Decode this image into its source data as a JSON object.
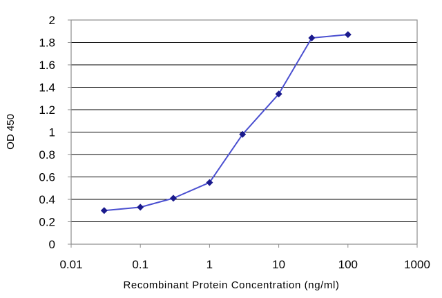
{
  "chart_data": {
    "type": "line",
    "title": "",
    "xlabel": "Recombinant Protein Concentration (ng/ml)",
    "ylabel": "OD 450",
    "xscale": "log",
    "xlim": [
      0.01,
      1000
    ],
    "ylim": [
      0,
      2
    ],
    "grid": "horizontal",
    "legend": "none",
    "x_ticks": [
      "0.01",
      "0.1",
      "1",
      "10",
      "100",
      "1000"
    ],
    "y_ticks": [
      "0",
      "0.2",
      "0.4",
      "0.6",
      "0.8",
      "1",
      "1.2",
      "1.4",
      "1.6",
      "1.8",
      "2"
    ],
    "series": [
      {
        "x": [
          0.03,
          0.1,
          0.3,
          1,
          3,
          10,
          30,
          100
        ],
        "y": [
          0.3,
          0.33,
          0.41,
          0.55,
          0.98,
          1.34,
          1.84,
          1.87
        ]
      }
    ],
    "colors": {
      "line": "#4a4fd0",
      "marker": "#1a1a8c",
      "gridline": "#000000",
      "frame": "#8c8c8c"
    }
  }
}
